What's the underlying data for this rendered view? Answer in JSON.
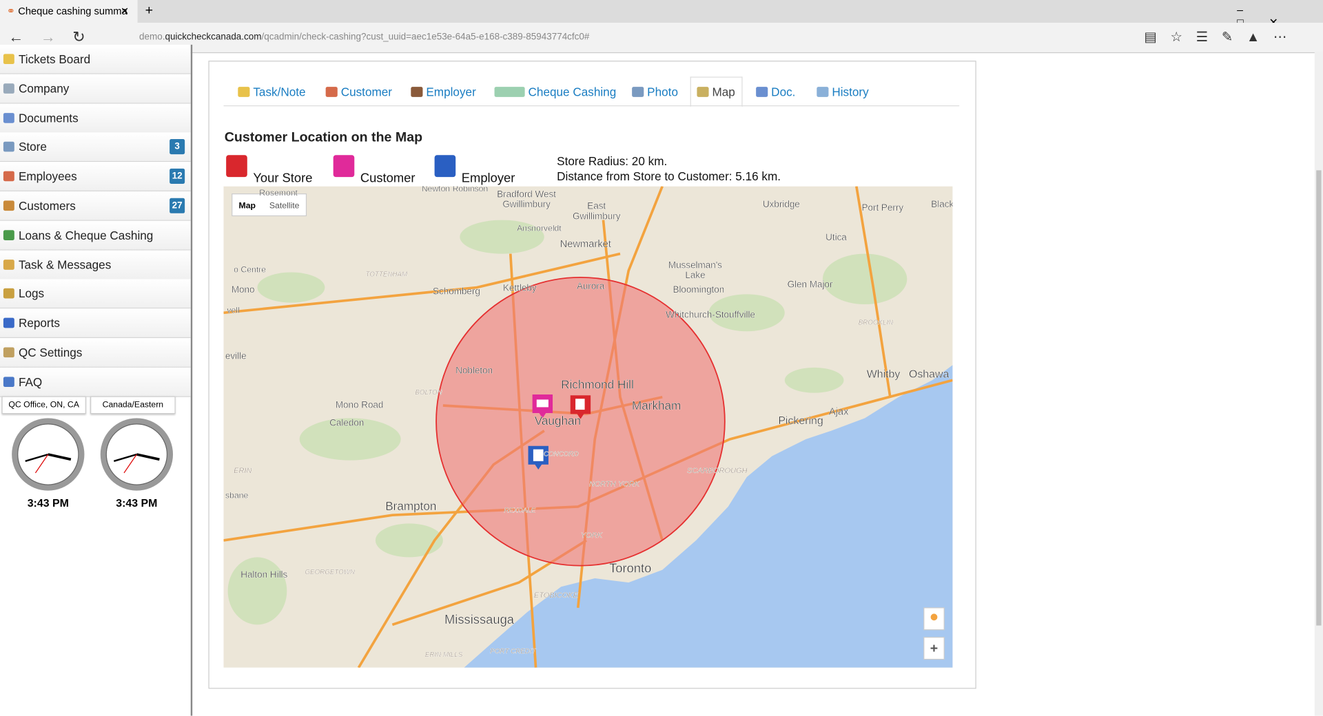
{
  "browser": {
    "tab_title": "Cheque cashing summa",
    "url_prefix": "demo.",
    "url_domain": "quickcheckcanada.com",
    "url_path": "/qcadmin/check-cashing?cust_uuid=aec1e53e-64a5-e168-c389-85943774cfc0#"
  },
  "sidebar": {
    "items": [
      {
        "label": "Tickets Board"
      },
      {
        "label": "Company"
      },
      {
        "label": "Documents"
      },
      {
        "label": "Store",
        "badge": 3
      },
      {
        "label": "Employees",
        "badge": 12
      },
      {
        "label": "Customers",
        "badge": 27
      },
      {
        "label": "Loans & Cheque Cashing"
      },
      {
        "label": "Task & Messages"
      },
      {
        "label": "Logs"
      },
      {
        "label": "Reports"
      },
      {
        "label": "QC Settings"
      },
      {
        "label": "FAQ"
      }
    ],
    "clock_buttons": [
      "QC Office, ON, CA",
      "Canada/Eastern"
    ],
    "clock_times": [
      "3:43 PM",
      "3:43 PM"
    ]
  },
  "tabs": [
    "Task/Note",
    "Customer",
    "Employer",
    "Cheque Cashing",
    "Photo",
    "Map",
    "Doc.",
    "History"
  ],
  "section": {
    "title": "Customer Location on the Map",
    "legend": [
      "Your Store",
      "Customer",
      "Employer"
    ],
    "info": [
      "Store Radius: 20 km.",
      "Distance from Store to Customer: 5.16 km."
    ]
  },
  "map": {
    "buttons": [
      "Map",
      "Satellite"
    ],
    "labels": [
      "Newmarket",
      "Aurora",
      "Richmond Hill",
      "Markham",
      "Vaughan",
      "Toronto",
      "Mississauga",
      "Brampton",
      "Pickering",
      "Ajax",
      "Whitby",
      "Oshawa",
      "Nobleton",
      "Schomberg",
      "Kettleby",
      "Bloomington",
      "Whitchurch-Stouffville",
      "Musselman's",
      "Lake",
      "Glen Major",
      "Uxbridge",
      "Utica",
      "Port Perry",
      "East",
      "Gwillimbury",
      "Bradford West",
      "Gwillimbury",
      "Ansnorveldt",
      "Caledon",
      "Mono Road",
      "Mono",
      "Halton Hills",
      "SCARBOROUGH",
      "NORTH YORK",
      "YORK",
      "ETOBICOKE",
      "ERIN MILLS",
      "PORT CREDIT",
      "GEORGETOWN",
      "REXDALE",
      "TOTTENHAM",
      "BROOKLIN",
      "Rosemont",
      "Newton Robinson",
      "Black",
      "o Centre",
      "vell",
      "eville",
      "sbane",
      "ERIN",
      "BOLTON",
      "CONCORD"
    ]
  }
}
